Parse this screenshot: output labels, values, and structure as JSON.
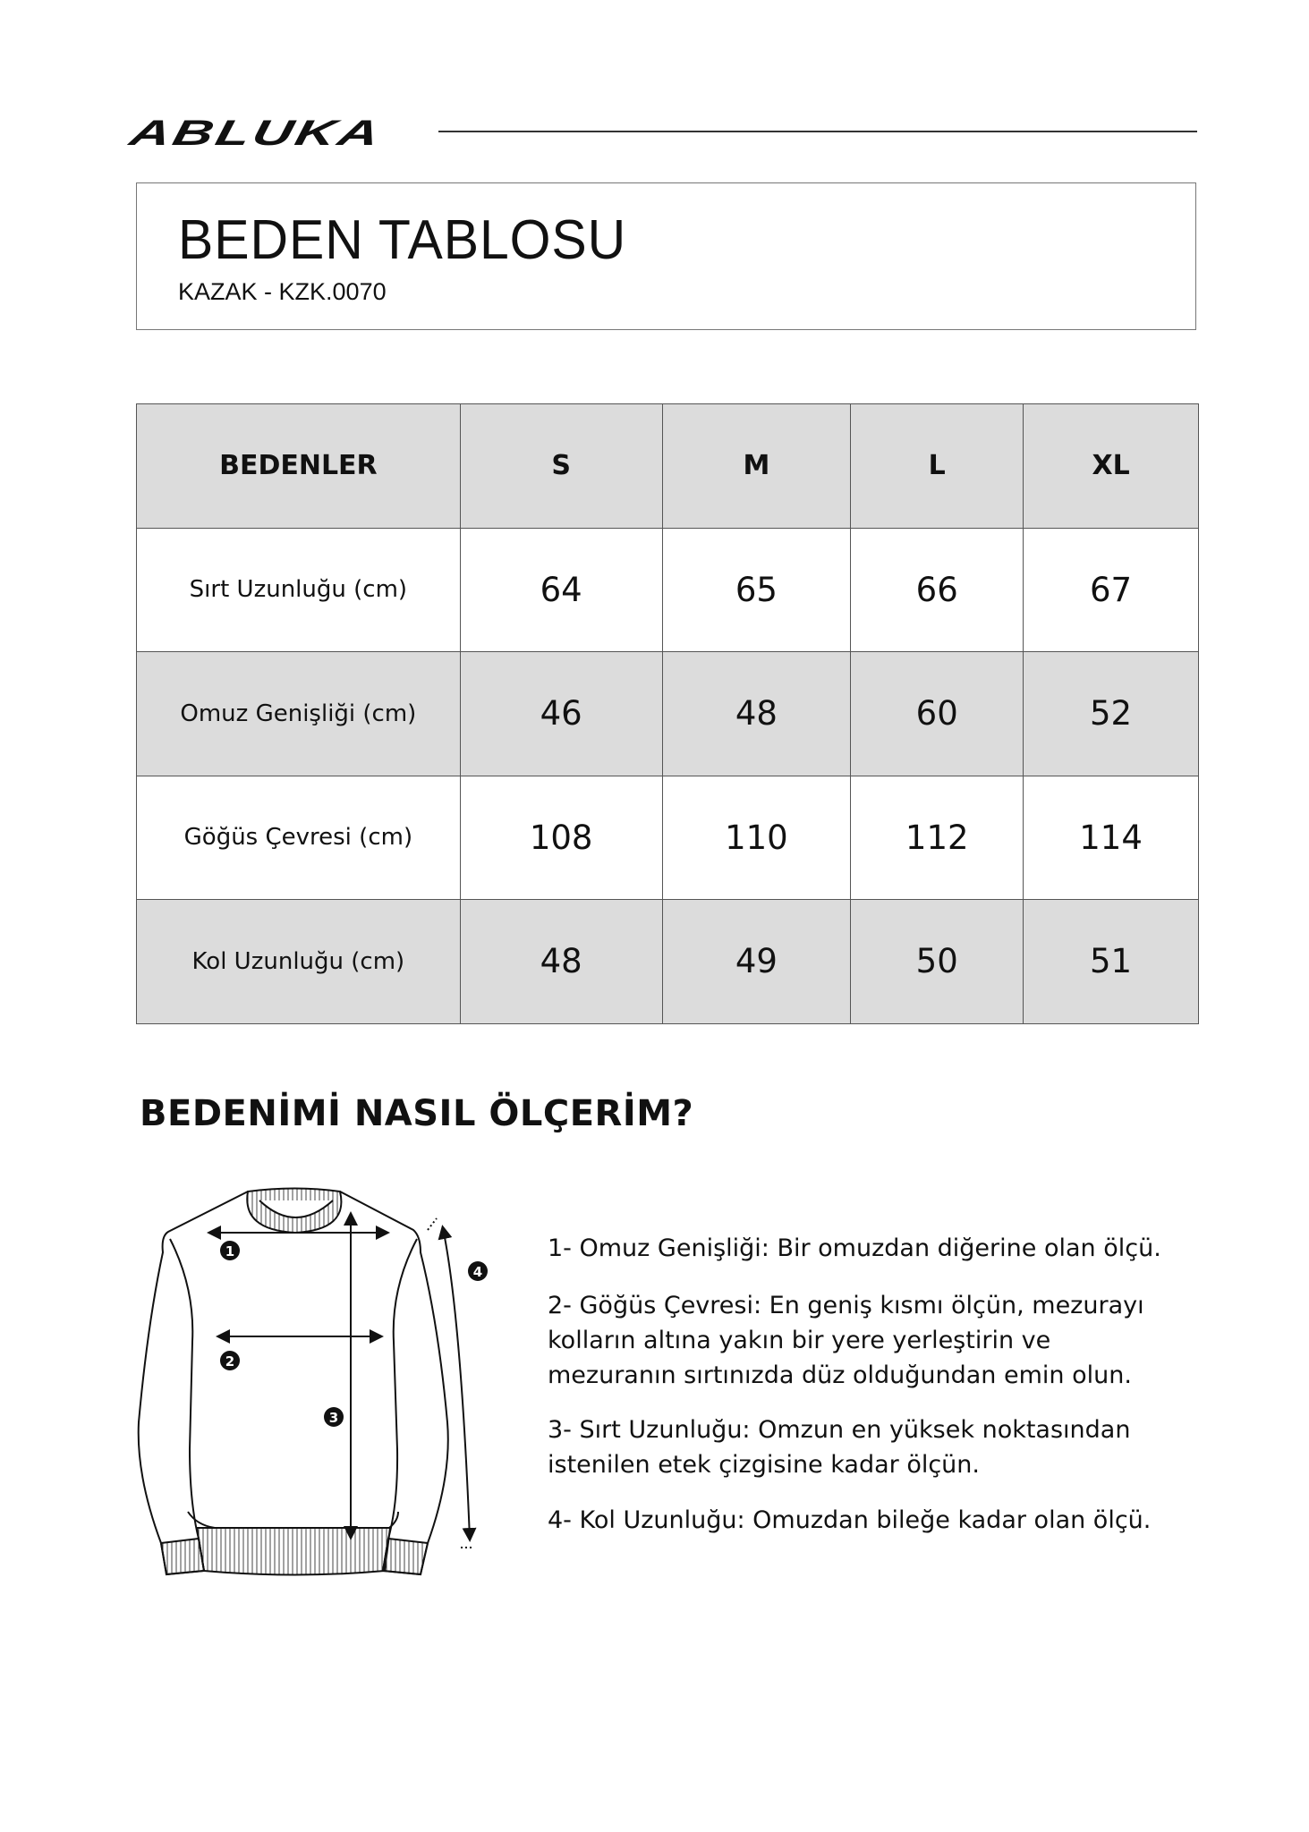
{
  "brand": {
    "logo": "ABLUKA"
  },
  "header": {
    "title": "BEDEN TABLOSU",
    "subtitle": "KAZAK - KZK.0070"
  },
  "table": {
    "headers": [
      "BEDENLER",
      "S",
      "M",
      "L",
      "XL"
    ],
    "rows": [
      {
        "label": "Sırt Uzunluğu (cm)",
        "values": [
          "64",
          "65",
          "66",
          "67"
        ]
      },
      {
        "label": "Omuz Genişliği (cm)",
        "values": [
          "46",
          "48",
          "60",
          "52"
        ]
      },
      {
        "label": "Göğüs Çevresi (cm)",
        "values": [
          "108",
          "110",
          "112",
          "114"
        ]
      },
      {
        "label": "Kol Uzunluğu (cm)",
        "values": [
          "48",
          "49",
          "50",
          "51"
        ]
      }
    ]
  },
  "howto": {
    "heading": "BEDENİMİ NASIL ÖLÇERİM?",
    "markers": [
      "1",
      "2",
      "3",
      "4"
    ],
    "instructions": [
      "1- Omuz Genişliği: Bir omuzdan diğerine olan ölçü.",
      "2- Göğüs Çevresi: En geniş kısmı ölçün, mezurayı kolların altına yakın bir yere yerleştirin ve mezuranın sırtınızda düz olduğundan emin olun.",
      "3- Sırt Uzunluğu: Omzun en yüksek noktasından istenilen etek çizgisine kadar ölçün.",
      "4- Kol Uzunluğu: Omuzdan bileğe kadar olan ölçü."
    ]
  },
  "colors": {
    "header_fill": "#dcdcdc",
    "border": "#555555"
  }
}
